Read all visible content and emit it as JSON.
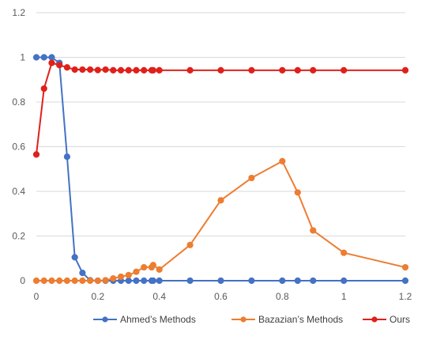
{
  "chart_data": {
    "type": "line",
    "title": "",
    "xlabel": "",
    "ylabel": "",
    "xlim": [
      0,
      1.2
    ],
    "ylim": [
      0,
      1.2
    ],
    "x_ticks": [
      "0",
      "0.2",
      "0.4",
      "0.6",
      "0.8",
      "1",
      "1.2"
    ],
    "y_ticks": [
      "0",
      "0.2",
      "0.4",
      "0.6",
      "0.8",
      "1",
      "1.2"
    ],
    "grid": true,
    "legend_position": "bottom",
    "series": [
      {
        "name": "Ahmed’s Methods",
        "color": "#4472C4",
        "x": [
          0,
          0.025,
          0.05,
          0.075,
          0.1,
          0.125,
          0.15,
          0.175,
          0.2,
          0.225,
          0.25,
          0.275,
          0.3,
          0.325,
          0.35,
          0.375,
          0.38,
          0.4,
          0.5,
          0.6,
          0.7,
          0.8,
          0.85,
          0.9,
          1.0,
          1.2
        ],
        "y": [
          1.0,
          1.0,
          1.0,
          0.975,
          0.555,
          0.105,
          0.035,
          0.002,
          0.0,
          0.0,
          0.0,
          0.0,
          0.0,
          0.0,
          0.0,
          0.0,
          0.0,
          0.0,
          0.0,
          0.0,
          0.0,
          0.0,
          0.0,
          0.0,
          0.0,
          0.0
        ]
      },
      {
        "name": "Bazazian’s Methods",
        "color": "#ED7D31",
        "x": [
          0,
          0.025,
          0.05,
          0.075,
          0.1,
          0.125,
          0.15,
          0.175,
          0.2,
          0.225,
          0.25,
          0.275,
          0.3,
          0.325,
          0.35,
          0.375,
          0.38,
          0.4,
          0.5,
          0.6,
          0.7,
          0.8,
          0.85,
          0.9,
          1.0,
          1.2
        ],
        "y": [
          0.0,
          0.0,
          0.0,
          0.0,
          0.0,
          0.0,
          0.0,
          0.0,
          0.0,
          0.002,
          0.01,
          0.018,
          0.025,
          0.04,
          0.06,
          0.06,
          0.07,
          0.05,
          0.16,
          0.36,
          0.46,
          0.535,
          0.395,
          0.225,
          0.125,
          0.06
        ]
      },
      {
        "name": "Ours",
        "color": "#E0201B",
        "x": [
          0,
          0.025,
          0.05,
          0.075,
          0.1,
          0.125,
          0.15,
          0.175,
          0.2,
          0.225,
          0.25,
          0.275,
          0.3,
          0.325,
          0.35,
          0.375,
          0.38,
          0.4,
          0.5,
          0.6,
          0.7,
          0.8,
          0.85,
          0.9,
          1.0,
          1.2
        ],
        "y": [
          0.565,
          0.86,
          0.975,
          0.965,
          0.955,
          0.945,
          0.945,
          0.945,
          0.943,
          0.945,
          0.942,
          0.942,
          0.942,
          0.942,
          0.942,
          0.942,
          0.942,
          0.942,
          0.942,
          0.942,
          0.942,
          0.942,
          0.942,
          0.942,
          0.942,
          0.942
        ]
      }
    ]
  }
}
